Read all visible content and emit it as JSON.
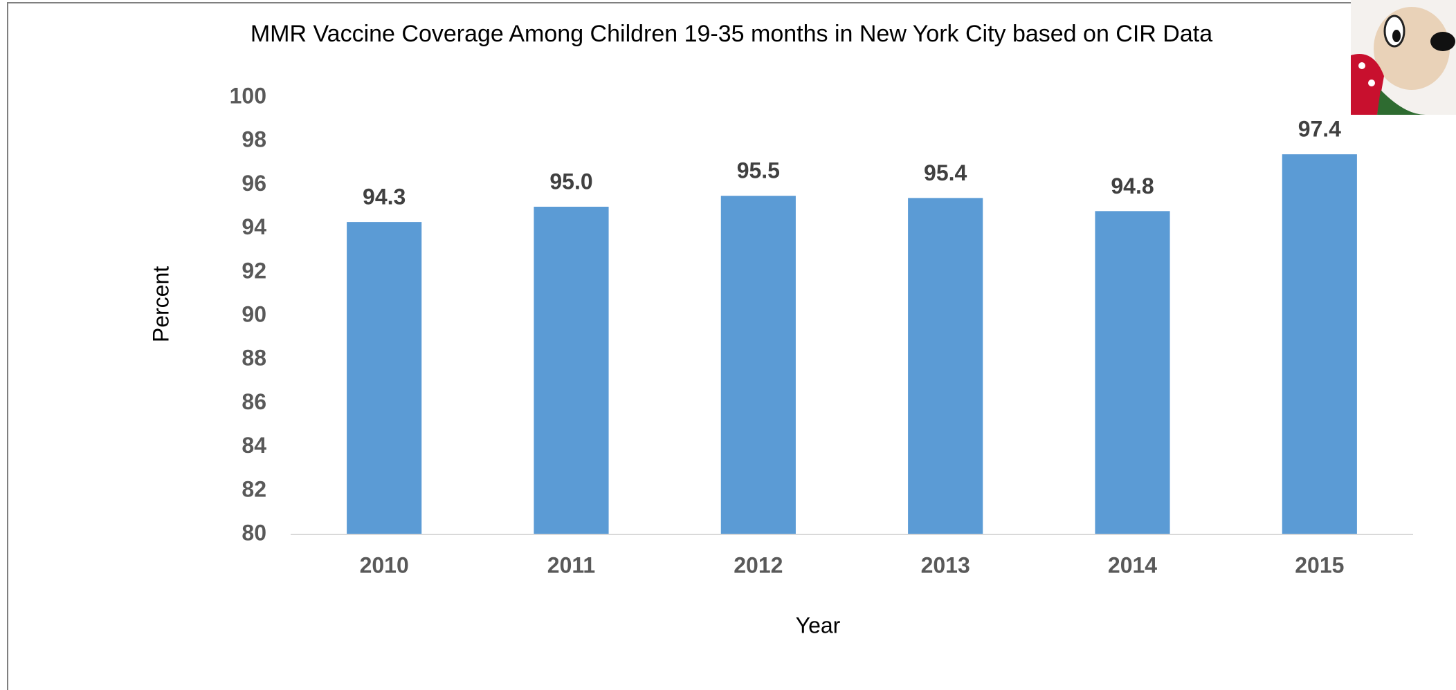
{
  "chart_data": {
    "type": "bar",
    "title": "MMR Vaccine Coverage Among Children 19-35 months in New York City based on CIR Data",
    "x_label": "Year",
    "y_label": "Percent",
    "categories": [
      "2010",
      "2011",
      "2012",
      "2013",
      "2014",
      "2015"
    ],
    "values": [
      94.3,
      95.0,
      95.5,
      95.4,
      94.8,
      97.4
    ],
    "value_labels": [
      "94.3",
      "95.0",
      "95.5",
      "95.4",
      "94.8",
      "97.4"
    ],
    "color": "#5b9bd5",
    "ylim": [
      80,
      100
    ],
    "yticks": [
      80,
      82,
      84,
      86,
      88,
      90,
      92,
      94,
      96,
      98,
      100
    ],
    "grid": false
  }
}
